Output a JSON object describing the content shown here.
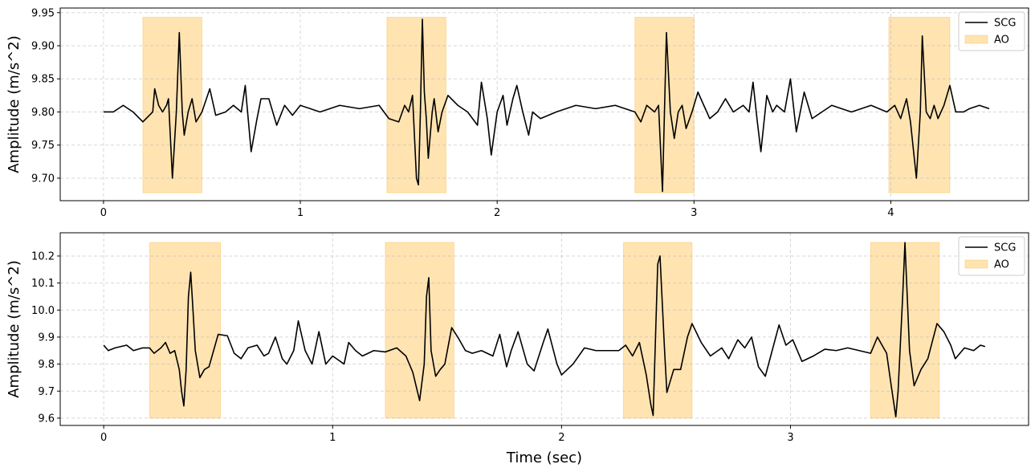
{
  "chart_data": [
    {
      "type": "line",
      "ylabel": "Amplitude (m/s^2)",
      "grid": true,
      "legend": "upper right",
      "xlim": [
        -0.22,
        4.7
      ],
      "ylim": [
        9.666,
        9.957
      ],
      "xticks": [
        0,
        1,
        2,
        3,
        4
      ],
      "yticks": [
        {
          "value": 9.7,
          "label": "9.70"
        },
        9.75,
        {
          "value": 9.8,
          "label": "9.80"
        },
        9.85,
        {
          "value": 9.9,
          "label": "9.90"
        },
        9.95
      ],
      "series": [
        {
          "name": "SCG",
          "color": "#000000",
          "x": [
            0,
            0.05,
            0.1,
            0.15,
            0.2,
            0.25,
            0.26,
            0.28,
            0.3,
            0.32,
            0.33,
            0.35,
            0.37,
            0.38,
            0.385,
            0.4,
            0.41,
            0.43,
            0.45,
            0.47,
            0.5,
            0.54,
            0.57,
            0.62,
            0.66,
            0.7,
            0.72,
            0.75,
            0.78,
            0.8,
            0.84,
            0.88,
            0.92,
            0.96,
            1.0,
            1.1,
            1.2,
            1.3,
            1.4,
            1.45,
            1.5,
            1.53,
            1.55,
            1.57,
            1.59,
            1.6,
            1.61,
            1.62,
            1.63,
            1.64,
            1.65,
            1.67,
            1.68,
            1.7,
            1.72,
            1.75,
            1.8,
            1.85,
            1.9,
            1.92,
            1.95,
            1.97,
            2.0,
            2.03,
            2.05,
            2.08,
            2.1,
            2.13,
            2.16,
            2.18,
            2.22,
            2.3,
            2.4,
            2.5,
            2.6,
            2.7,
            2.73,
            2.76,
            2.8,
            2.82,
            2.84,
            2.86,
            2.88,
            2.9,
            2.92,
            2.94,
            2.96,
            2.99,
            3.02,
            3.05,
            3.08,
            3.12,
            3.16,
            3.2,
            3.25,
            3.28,
            3.3,
            3.32,
            3.34,
            3.37,
            3.4,
            3.42,
            3.46,
            3.49,
            3.52,
            3.56,
            3.6,
            3.65,
            3.7,
            3.8,
            3.9,
            3.98,
            4.02,
            4.05,
            4.08,
            4.1,
            4.13,
            4.15,
            4.16,
            4.18,
            4.2,
            4.22,
            4.24,
            4.27,
            4.3,
            4.33,
            4.37,
            4.4,
            4.45,
            4.5
          ],
          "values": [
            9.8,
            9.8,
            9.81,
            9.8,
            9.785,
            9.8,
            9.835,
            9.81,
            9.8,
            9.81,
            9.82,
            9.7,
            9.8,
            9.88,
            9.92,
            9.8,
            9.765,
            9.8,
            9.82,
            9.785,
            9.8,
            9.835,
            9.795,
            9.8,
            9.81,
            9.8,
            9.84,
            9.74,
            9.79,
            9.82,
            9.82,
            9.78,
            9.81,
            9.795,
            9.81,
            9.8,
            9.81,
            9.805,
            9.81,
            9.79,
            9.785,
            9.81,
            9.8,
            9.825,
            9.7,
            9.69,
            9.8,
            9.94,
            9.83,
            9.79,
            9.73,
            9.8,
            9.82,
            9.77,
            9.8,
            9.825,
            9.81,
            9.8,
            9.78,
            9.845,
            9.79,
            9.735,
            9.8,
            9.825,
            9.78,
            9.82,
            9.84,
            9.8,
            9.765,
            9.8,
            9.79,
            9.8,
            9.81,
            9.805,
            9.81,
            9.8,
            9.785,
            9.81,
            9.8,
            9.81,
            9.68,
            9.92,
            9.8,
            9.76,
            9.8,
            9.81,
            9.775,
            9.8,
            9.83,
            9.81,
            9.79,
            9.8,
            9.82,
            9.8,
            9.81,
            9.8,
            9.845,
            9.79,
            9.74,
            9.825,
            9.8,
            9.81,
            9.8,
            9.85,
            9.77,
            9.83,
            9.79,
            9.8,
            9.81,
            9.8,
            9.81,
            9.8,
            9.81,
            9.79,
            9.82,
            9.785,
            9.7,
            9.8,
            9.915,
            9.8,
            9.79,
            9.81,
            9.79,
            9.81,
            9.84,
            9.8,
            9.8,
            9.805,
            9.81,
            9.805
          ]
        },
        {
          "name": "AO",
          "color": "#ffa500",
          "alpha": 0.3,
          "spans": [
            [
              0.2,
              0.5
            ],
            [
              1.44,
              1.74
            ],
            [
              2.7,
              3.0
            ],
            [
              3.99,
              4.3
            ]
          ],
          "span_range": [
            9.678,
            9.943
          ]
        }
      ]
    },
    {
      "type": "line",
      "ylabel": "Amplitude (m/s^2)",
      "xlabel": "Time (sec)",
      "grid": true,
      "legend": "upper right",
      "xlim": [
        -0.19,
        4.04
      ],
      "ylim": [
        9.573,
        10.286
      ],
      "xticks": [
        0,
        1,
        2,
        3
      ],
      "yticks": [
        9.6,
        9.7,
        9.8,
        9.9,
        {
          "value": 10.0,
          "label": "10.0"
        },
        10.1,
        10.2
      ],
      "series": [
        {
          "name": "SCG",
          "color": "#000000",
          "x": [
            0,
            0.02,
            0.05,
            0.1,
            0.13,
            0.17,
            0.2,
            0.22,
            0.25,
            0.27,
            0.29,
            0.31,
            0.33,
            0.34,
            0.35,
            0.36,
            0.37,
            0.38,
            0.39,
            0.4,
            0.42,
            0.44,
            0.46,
            0.48,
            0.5,
            0.54,
            0.57,
            0.6,
            0.63,
            0.67,
            0.7,
            0.72,
            0.75,
            0.78,
            0.8,
            0.83,
            0.85,
            0.88,
            0.91,
            0.94,
            0.97,
            1.0,
            1.05,
            1.07,
            1.1,
            1.13,
            1.18,
            1.23,
            1.28,
            1.32,
            1.35,
            1.38,
            1.4,
            1.41,
            1.42,
            1.43,
            1.45,
            1.47,
            1.49,
            1.52,
            1.55,
            1.58,
            1.61,
            1.65,
            1.7,
            1.73,
            1.76,
            1.78,
            1.81,
            1.85,
            1.88,
            1.92,
            1.94,
            1.98,
            2.0,
            2.05,
            2.1,
            2.15,
            2.2,
            2.25,
            2.28,
            2.31,
            2.34,
            2.37,
            2.39,
            2.4,
            2.42,
            2.43,
            2.45,
            2.46,
            2.49,
            2.52,
            2.55,
            2.57,
            2.61,
            2.65,
            2.7,
            2.73,
            2.77,
            2.8,
            2.83,
            2.86,
            2.89,
            2.92,
            2.95,
            2.98,
            3.01,
            3.05,
            3.1,
            3.15,
            3.2,
            3.25,
            3.3,
            3.35,
            3.38,
            3.42,
            3.44,
            3.46,
            3.47,
            3.49,
            3.5,
            3.52,
            3.54,
            3.57,
            3.6,
            3.64,
            3.67,
            3.7,
            3.72,
            3.76,
            3.8,
            3.83,
            3.85
          ],
          "values": [
            9.87,
            9.85,
            9.86,
            9.87,
            9.85,
            9.86,
            9.86,
            9.84,
            9.86,
            9.88,
            9.84,
            9.85,
            9.78,
            9.7,
            9.645,
            9.78,
            10.05,
            10.14,
            10.0,
            9.85,
            9.75,
            9.78,
            9.79,
            9.85,
            9.91,
            9.905,
            9.84,
            9.82,
            9.86,
            9.87,
            9.83,
            9.84,
            9.9,
            9.82,
            9.8,
            9.85,
            9.96,
            9.85,
            9.8,
            9.92,
            9.8,
            9.83,
            9.8,
            9.88,
            9.85,
            9.83,
            9.85,
            9.845,
            9.86,
            9.83,
            9.77,
            9.665,
            9.8,
            10.05,
            10.12,
            9.85,
            9.755,
            9.78,
            9.8,
            9.935,
            9.895,
            9.85,
            9.84,
            9.85,
            9.83,
            9.91,
            9.79,
            9.85,
            9.92,
            9.8,
            9.775,
            9.88,
            9.93,
            9.8,
            9.76,
            9.8,
            9.86,
            9.85,
            9.85,
            9.85,
            9.87,
            9.83,
            9.88,
            9.76,
            9.65,
            9.61,
            10.17,
            10.2,
            9.85,
            9.695,
            9.78,
            9.78,
            9.9,
            9.95,
            9.88,
            9.83,
            9.86,
            9.82,
            9.89,
            9.86,
            9.9,
            9.79,
            9.755,
            9.85,
            9.945,
            9.87,
            9.89,
            9.81,
            9.83,
            9.855,
            9.85,
            9.86,
            9.85,
            9.84,
            9.9,
            9.84,
            9.72,
            9.605,
            9.7,
            10.05,
            10.25,
            9.85,
            9.72,
            9.78,
            9.82,
            9.95,
            9.92,
            9.87,
            9.82,
            9.86,
            9.85,
            9.87,
            9.865
          ]
        },
        {
          "name": "AO",
          "color": "#ffa500",
          "alpha": 0.3,
          "spans": [
            [
              0.2,
              0.51
            ],
            [
              1.23,
              1.53
            ],
            [
              2.27,
              2.57
            ],
            [
              3.35,
              3.65
            ]
          ],
          "span_range": [
            9.6,
            10.25
          ]
        }
      ]
    }
  ]
}
